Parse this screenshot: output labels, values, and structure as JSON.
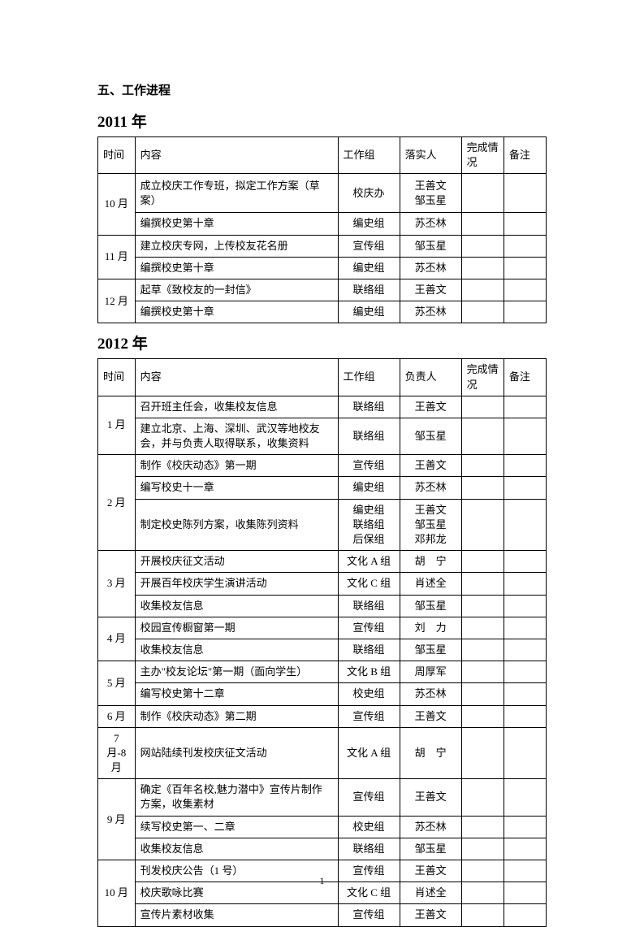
{
  "section_title": "五、工作进程",
  "page_number": "1",
  "tables": [
    {
      "year_label": "2011 年",
      "header": {
        "time": "时间",
        "content": "内容",
        "group": "工作组",
        "person": "落实人",
        "status": "完成情况",
        "note": "备注"
      },
      "rows": [
        {
          "time": "10 月",
          "tall": true,
          "content": "成立校庆工作专班，拟定工作方案（草案）",
          "group": "校庆办",
          "person": "王善文\n邹玉星"
        },
        {
          "time": null,
          "content": "编撰校史第十章",
          "group": "编史组",
          "person": "苏丕林"
        },
        {
          "time": "11 月",
          "content": "建立校庆专网，上传校友花名册",
          "group": "宣传组",
          "person": "邹玉星"
        },
        {
          "time": null,
          "content": "编撰校史第十章",
          "group": "编史组",
          "person": "苏丕林"
        },
        {
          "time": "12 月",
          "content": "起草《致校友的一封信》",
          "group": "联络组",
          "person": "王善文"
        },
        {
          "time": null,
          "content": "编撰校史第十章",
          "group": "编史组",
          "person": "苏丕林"
        }
      ]
    },
    {
      "year_label": "2012 年",
      "header": {
        "time": "时间",
        "content": "内容",
        "group": "工作组",
        "person": "负责人",
        "status": "完成情况",
        "note": "备注"
      },
      "rows": [
        {
          "time": "1 月",
          "content": "召开班主任会，收集校友信息",
          "group": "联络组",
          "person": "王善文"
        },
        {
          "time": null,
          "content": "建立北京、上海、深圳、武汉等地校友会，并与负责人取得联系，收集资料",
          "group": "联络组",
          "person": "邹玉星"
        },
        {
          "time": "2 月",
          "content": "制作《校庆动态》第一期",
          "group": "宣传组",
          "person": "王善文"
        },
        {
          "time": null,
          "content": "编写校史十一章",
          "group": "编史组",
          "person": "苏丕林"
        },
        {
          "time": null,
          "tall": true,
          "content": "制定校史陈列方案，收集陈列资料",
          "group": "编史组\n联络组\n后保组",
          "person": "王善文\n邹玉星\n邓邦龙"
        },
        {
          "time": "3 月",
          "content": "开展校庆征文活动",
          "group": "文化 A 组",
          "person": "胡　宁"
        },
        {
          "time": null,
          "content": "开展百年校庆学生演讲活动",
          "group": "文化 C 组",
          "person": "肖述全"
        },
        {
          "time": null,
          "content": "收集校友信息",
          "group": "联络组",
          "person": "邹玉星"
        },
        {
          "time": "4 月",
          "content": "校园宣传橱窗第一期",
          "group": "宣传组",
          "person": "刘　力"
        },
        {
          "time": null,
          "content": "收集校友信息",
          "group": "联络组",
          "person": "邹玉星"
        },
        {
          "time": "5 月",
          "content": "主办\"校友论坛\"第一期（面向学生）",
          "group": "文化 B 组",
          "person": "周厚军"
        },
        {
          "time": null,
          "content": "编写校史第十二章",
          "group": "校史组",
          "person": "苏丕林"
        },
        {
          "time": "6 月",
          "content": "制作《校庆动态》第二期",
          "group": "宣传组",
          "person": "王善文"
        },
        {
          "time": "7 月-8 月",
          "content": "网站陆续刊发校庆征文活动",
          "group": "文化 A 组",
          "person": "胡　宁"
        },
        {
          "time": "9 月",
          "content": "确定《百年名校,魅力潜中》宣传片制作方案，收集素材",
          "group": "宣传组",
          "person": "王善文"
        },
        {
          "time": null,
          "content": "续写校史第一、二章",
          "group": "校史组",
          "person": "苏丕林"
        },
        {
          "time": null,
          "content": "收集校友信息",
          "group": "联络组",
          "person": "邹玉星"
        },
        {
          "time": "10 月",
          "content": "刊发校庆公告（1 号）",
          "group": "宣传组",
          "person": "王善文"
        },
        {
          "time": null,
          "content": "校庆歌咏比赛",
          "group": "文化 C 组",
          "person": "肖述全"
        },
        {
          "time": null,
          "content": "宣传片素材收集",
          "group": "宣传组",
          "person": "王善文"
        }
      ]
    }
  ]
}
